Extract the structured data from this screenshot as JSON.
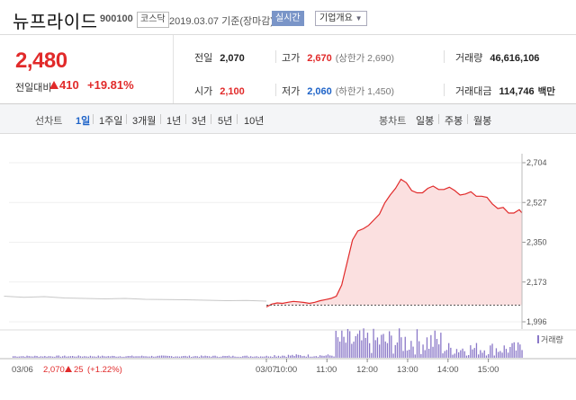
{
  "header": {
    "name": "뉴프라이드",
    "code": "900100",
    "market": "코스닥",
    "date": "2019.03.07 기준(장마감)",
    "live_label": "실시간",
    "info_label": "기업개요"
  },
  "summary": {
    "price": "2,480",
    "change_label": "전일대비",
    "change": "410",
    "change_pct": "+19.81%",
    "prev_close": {
      "label": "전일",
      "value": "2,070"
    },
    "open": {
      "label": "시가",
      "value": "2,100"
    },
    "high": {
      "label": "고가",
      "value": "2,670",
      "sub": "(상한가 2,690)"
    },
    "low": {
      "label": "저가",
      "value": "2,060",
      "sub": "(하한가 1,450)"
    },
    "volume": {
      "label": "거래량",
      "value": "46,616,106"
    },
    "amount": {
      "label": "거래대금",
      "value": "114,746",
      "unit": "백만"
    }
  },
  "tabs": {
    "line_label": "선차트",
    "line_items": [
      "1일",
      "1주일",
      "3개월",
      "1년",
      "3년",
      "5년",
      "10년"
    ],
    "candle_label": "봉차트",
    "candle_items": [
      "일봉",
      "주봉",
      "월봉"
    ]
  },
  "colors": {
    "up": "#e12a2a",
    "down": "#1e63c8",
    "area": "#fbe0e0",
    "prev": "#c8c8c8",
    "volume": "#8a78c8"
  },
  "chart_data": {
    "type": "line",
    "y_ticks": [
      "2,704",
      "2,527",
      "2,350",
      "2,173",
      "1,996"
    ],
    "ylim": [
      1996,
      2704
    ],
    "baseline": 2070,
    "x_ticks": [
      "03/07",
      "10:00",
      "11:00",
      "12:00",
      "13:00",
      "14:00",
      "15:00"
    ],
    "bottom_start": "03/06",
    "prev_day_summary": {
      "value": "2,070",
      "change": "25",
      "pct": "(+1.22%)"
    },
    "volume_legend": "거래량",
    "today_series": [
      [
        0,
        2062
      ],
      [
        8,
        2075
      ],
      [
        16,
        2080
      ],
      [
        24,
        2078
      ],
      [
        32,
        2083
      ],
      [
        40,
        2087
      ],
      [
        48,
        2085
      ],
      [
        56,
        2082
      ],
      [
        64,
        2078
      ],
      [
        72,
        2083
      ],
      [
        80,
        2090
      ],
      [
        88,
        2095
      ],
      [
        96,
        2100
      ],
      [
        104,
        2110
      ],
      [
        112,
        2160
      ],
      [
        120,
        2260
      ],
      [
        128,
        2360
      ],
      [
        136,
        2400
      ],
      [
        144,
        2410
      ],
      [
        152,
        2425
      ],
      [
        160,
        2450
      ],
      [
        168,
        2475
      ],
      [
        176,
        2525
      ],
      [
        184,
        2560
      ],
      [
        192,
        2590
      ],
      [
        200,
        2630
      ],
      [
        208,
        2615
      ],
      [
        216,
        2580
      ],
      [
        224,
        2570
      ],
      [
        232,
        2570
      ],
      [
        240,
        2590
      ],
      [
        248,
        2600
      ],
      [
        256,
        2585
      ],
      [
        264,
        2585
      ],
      [
        272,
        2595
      ],
      [
        280,
        2580
      ],
      [
        288,
        2560
      ],
      [
        296,
        2565
      ],
      [
        304,
        2575
      ],
      [
        312,
        2555
      ],
      [
        320,
        2555
      ],
      [
        328,
        2550
      ],
      [
        336,
        2520
      ],
      [
        344,
        2500
      ],
      [
        352,
        2505
      ],
      [
        360,
        2480
      ],
      [
        368,
        2480
      ],
      [
        376,
        2495
      ],
      [
        380,
        2480
      ]
    ],
    "prev_series": [
      [
        -390,
        2110
      ],
      [
        -360,
        2105
      ],
      [
        -330,
        2108
      ],
      [
        -300,
        2102
      ],
      [
        -270,
        2100
      ],
      [
        -240,
        2098
      ],
      [
        -210,
        2100
      ],
      [
        -180,
        2096
      ],
      [
        -150,
        2095
      ],
      [
        -120,
        2094
      ],
      [
        -90,
        2092
      ],
      [
        -60,
        2090
      ],
      [
        -30,
        2091
      ],
      [
        0,
        2088
      ]
    ]
  }
}
